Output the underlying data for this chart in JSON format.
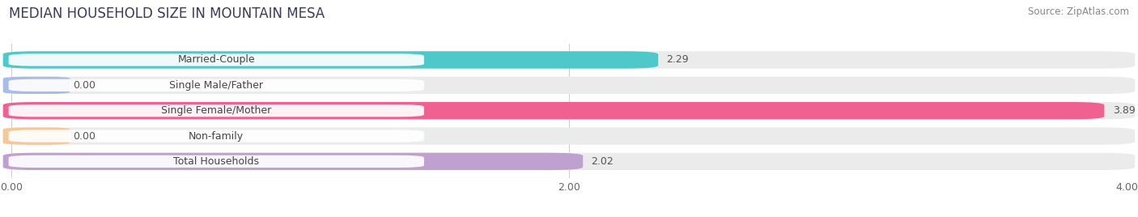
{
  "title": "MEDIAN HOUSEHOLD SIZE IN MOUNTAIN MESA",
  "source": "Source: ZipAtlas.com",
  "categories": [
    "Married-Couple",
    "Single Male/Father",
    "Single Female/Mother",
    "Non-family",
    "Total Households"
  ],
  "values": [
    2.29,
    0.0,
    3.89,
    0.0,
    2.02
  ],
  "bar_colors": [
    "#4ec8c8",
    "#a8bce8",
    "#f06090",
    "#f5c89a",
    "#c0a0d0"
  ],
  "bg_color": "#ffffff",
  "bar_bg_color": "#ebebeb",
  "xlim": [
    0,
    4.0
  ],
  "xticks": [
    0.0,
    2.0,
    4.0
  ],
  "xtick_labels": [
    "0.00",
    "2.00",
    "4.00"
  ],
  "title_fontsize": 12,
  "label_fontsize": 9,
  "value_fontsize": 9,
  "source_fontsize": 8.5,
  "bar_height": 0.62,
  "bar_gap": 0.18
}
